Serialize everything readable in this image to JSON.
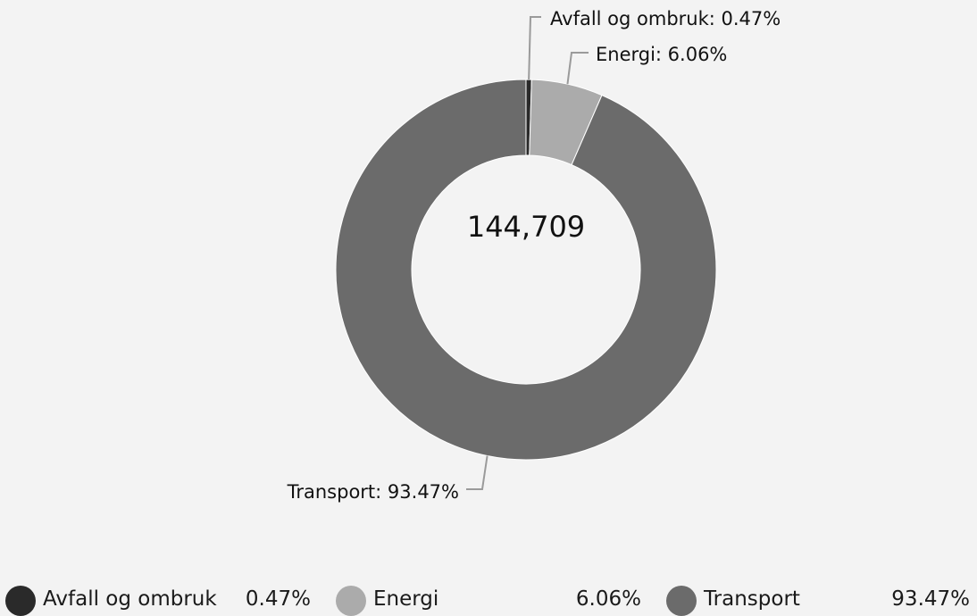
{
  "colors": {
    "background": "#f3f3f3",
    "leader": "#9a9a9a",
    "text": "#111111"
  },
  "chart_data": {
    "type": "pie",
    "variant": "donut",
    "center_label": "144,709",
    "slices": [
      {
        "label": "Avfall og ombruk",
        "percent": 0.47,
        "percent_label": "0.47%",
        "callout": "Avfall og ombruk: 0.47%",
        "color": "#2a2a2a"
      },
      {
        "label": "Energi",
        "percent": 6.06,
        "percent_label": "6.06%",
        "callout": "Energi: 6.06%",
        "color": "#ababab"
      },
      {
        "label": "Transport",
        "percent": 93.47,
        "percent_label": "93.47%",
        "callout": "Transport: 93.47%",
        "color": "#6b6b6b"
      }
    ],
    "legend_position": "bottom"
  }
}
